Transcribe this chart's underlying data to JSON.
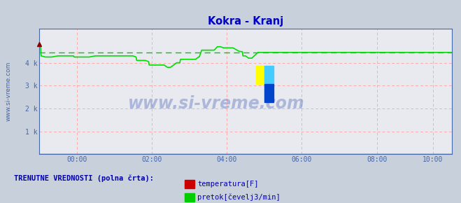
{
  "title": "Kokra - Kranj",
  "title_color": "#0000cc",
  "bg_color": "#c8d0dc",
  "plot_bg_color": "#e8eaf0",
  "grid_color": "#ffaaaa",
  "axis_color": "#4466aa",
  "watermark": "www.si-vreme.com",
  "xlim": [
    0,
    660
  ],
  "ylim": [
    0,
    5500
  ],
  "yticks": [
    1000,
    2000,
    3000,
    4000
  ],
  "ytick_labels": [
    "1 k",
    "2 k",
    "3 k",
    "4 k"
  ],
  "xticks": [
    60,
    180,
    300,
    420,
    540,
    630
  ],
  "xtick_labels": [
    "00:00",
    "02:00",
    "04:00",
    "06:00",
    "08:00",
    "10:00"
  ],
  "flow_color": "#00dd00",
  "temp_color": "#cc0000",
  "avg_color": "#00cc00",
  "flow_avg": 4460,
  "legend_title": "TRENUTNE VREDNOSTI (polna črta):",
  "legend_title_color": "#0000aa",
  "legend_items": [
    "temperatura[F]",
    "pretok[čevelj3/min]"
  ],
  "legend_colors": [
    "#cc0000",
    "#00cc00"
  ],
  "flow_data_x": [
    0,
    2,
    3,
    10,
    20,
    30,
    40,
    55,
    56,
    60,
    70,
    80,
    90,
    100,
    110,
    120,
    130,
    140,
    150,
    155,
    156,
    160,
    170,
    175,
    176,
    180,
    190,
    200,
    205,
    206,
    210,
    220,
    225,
    226,
    230,
    240,
    250,
    255,
    256,
    260,
    265,
    270,
    280,
    285,
    286,
    290,
    295,
    296,
    300,
    310,
    320,
    325,
    326,
    330,
    335,
    336,
    340,
    350,
    355,
    356,
    360,
    370,
    380,
    390,
    395,
    396,
    400,
    410,
    415,
    416,
    420,
    430,
    440,
    450,
    460,
    470,
    480,
    490,
    500,
    510,
    520,
    530,
    540,
    550,
    560,
    570,
    580,
    590,
    600,
    610,
    620,
    630,
    660
  ],
  "flow_data_y": [
    4800,
    4800,
    4300,
    4250,
    4250,
    4300,
    4300,
    4300,
    4250,
    4250,
    4250,
    4250,
    4300,
    4300,
    4300,
    4300,
    4300,
    4300,
    4300,
    4250,
    4100,
    4100,
    4100,
    4050,
    3900,
    3900,
    3900,
    3900,
    3800,
    3800,
    3800,
    4000,
    4000,
    4150,
    4150,
    4150,
    4150,
    4250,
    4250,
    4550,
    4550,
    4550,
    4550,
    4700,
    4700,
    4700,
    4650,
    4650,
    4650,
    4650,
    4500,
    4480,
    4300,
    4300,
    4200,
    4200,
    4200,
    4450,
    4450,
    4450,
    4450,
    4450,
    4450,
    4450,
    4450,
    4450,
    4450,
    4450,
    4450,
    4450,
    4450,
    4450,
    4450,
    4450,
    4450,
    4450,
    4450,
    4450,
    4450,
    4450,
    4450,
    4450,
    4450,
    4450,
    4450,
    4450,
    4450,
    4450,
    4450,
    4450,
    4450,
    4450,
    4450
  ],
  "temp_data_x": [
    0,
    660
  ],
  "temp_data_y": [
    10,
    10
  ]
}
